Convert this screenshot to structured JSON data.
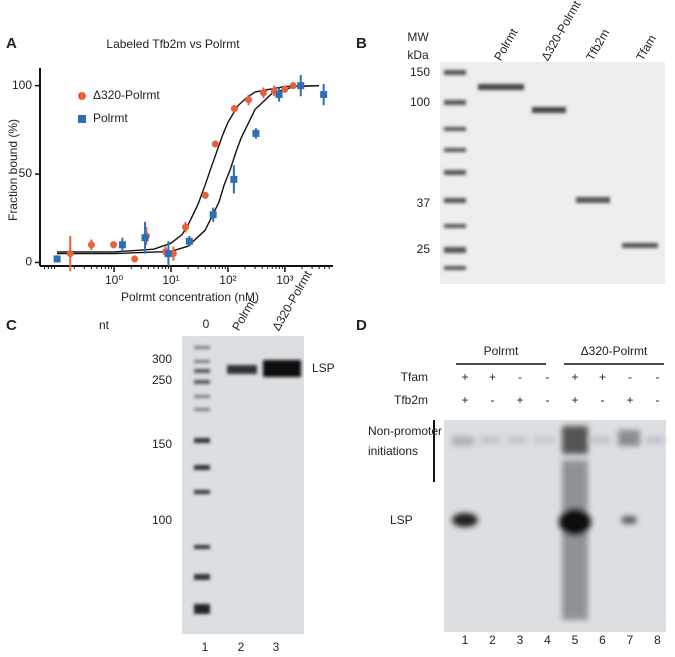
{
  "panel_labels": [
    "A",
    "B",
    "C",
    "D"
  ],
  "chart_data": {
    "type": "scatter",
    "title": "Labeled Tfb2m vs Polrmt",
    "x_label": "Polrmt concentration (nM)",
    "y_label": "Fraction bound (%)",
    "log_x": true,
    "legend": "upper left",
    "xlim": [
      0.05,
      7000
    ],
    "ylim": [
      -2,
      110
    ],
    "xticks": [
      {
        "value": 1,
        "label": "10⁰"
      },
      {
        "value": 10,
        "label": "10¹"
      },
      {
        "value": 100,
        "label": "10²"
      },
      {
        "value": 1000,
        "label": "10³"
      }
    ],
    "yticks": [
      0,
      50,
      100
    ],
    "series": [
      {
        "name": "Δ320-Polrmt",
        "color": "#e8603c",
        "marker": "circle",
        "x": [
          0.17,
          0.4,
          0.98,
          2.3,
          3.7,
          8,
          11,
          18,
          40,
          60,
          130,
          230,
          420,
          650,
          1000,
          1400
        ],
        "values": [
          5,
          10,
          10,
          2,
          15,
          6,
          5,
          20,
          38,
          67,
          87,
          92,
          96,
          97,
          98,
          100
        ],
        "errors": [
          10,
          3,
          2,
          2,
          5,
          3,
          4,
          3,
          2,
          1,
          2,
          3,
          3,
          3,
          2,
          1
        ]
      },
      {
        "name": "Polrmt",
        "color": "#2f6db5",
        "marker": "square",
        "x": [
          0.1,
          1.4,
          3.5,
          9,
          21,
          55,
          127,
          310,
          790,
          1900,
          4800
        ],
        "values": [
          2,
          10,
          14,
          5,
          12,
          27,
          47,
          73,
          95,
          100,
          95
        ],
        "errors": [
          2,
          4,
          9,
          7,
          3,
          4,
          8,
          3,
          4,
          6,
          6
        ]
      }
    ]
  },
  "gel_b": {
    "header": [
      "MW",
      "kDa"
    ],
    "lanes": [
      "Polrmt",
      "Δ320-Polrmt",
      "Tfb2m",
      "Tfam"
    ],
    "markers": [
      "150",
      "100",
      "37",
      "25"
    ]
  },
  "gel_c": {
    "unit": "nt",
    "lanes": [
      "0",
      "Polrmt",
      "Δ320-Polrmt"
    ],
    "markers": [
      "300",
      "250",
      "150",
      "100"
    ],
    "band_label": "LSP",
    "lane_numbers": [
      "1",
      "2",
      "3"
    ]
  },
  "gel_d": {
    "groups": [
      "Polrmt",
      "Δ320-Polrmt"
    ],
    "rows": [
      {
        "name": "Tfam",
        "signs": [
          "+",
          "+",
          "-",
          "-",
          "+",
          "+",
          "-",
          "-"
        ]
      },
      {
        "name": "Tfb2m",
        "signs": [
          "+",
          "-",
          "+",
          "-",
          "+",
          "-",
          "+",
          "-"
        ]
      }
    ],
    "region_label": [
      "Non-promoter",
      "initiations"
    ],
    "band_label": "LSP",
    "lane_numbers": [
      "1",
      "2",
      "3",
      "4",
      "5",
      "6",
      "7",
      "8"
    ]
  }
}
